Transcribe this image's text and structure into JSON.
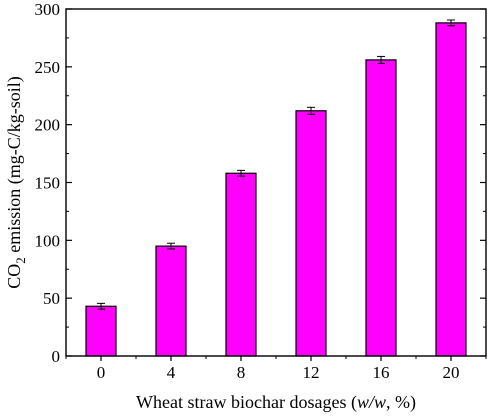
{
  "chart_data": {
    "type": "bar",
    "categories": [
      "0",
      "4",
      "8",
      "12",
      "16",
      "20"
    ],
    "values": [
      43,
      95,
      158,
      212,
      256,
      288
    ],
    "errors": [
      2.5,
      2.5,
      2.5,
      3,
      3,
      2.5
    ],
    "xlabel": {
      "prefix": "Wheat straw biochar dosages (",
      "italic": "w/w",
      "suffix": ", %)"
    },
    "ylabel": {
      "prefix": "CO",
      "subscript": "2",
      "suffix": " emission (mg-C/kg-soil)"
    },
    "ylim": [
      0,
      300
    ],
    "yticks": [
      0,
      50,
      100,
      150,
      200,
      250,
      300
    ],
    "grid": false,
    "colors": {
      "bar": "#ff00ff",
      "outline": "#000000"
    }
  }
}
